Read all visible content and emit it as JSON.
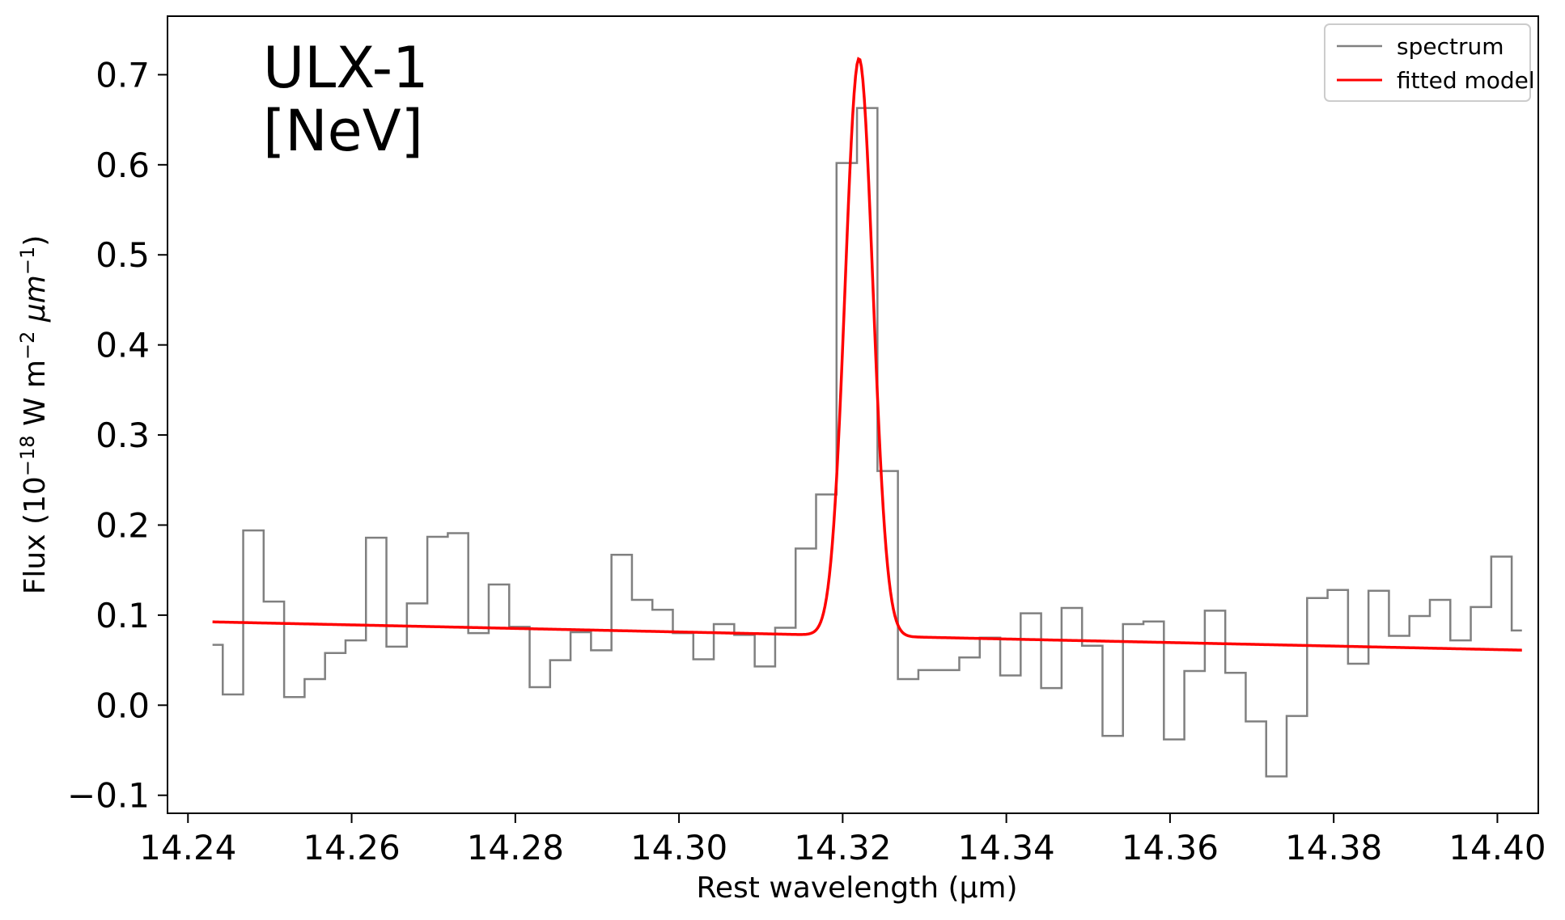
{
  "chart_data": {
    "type": "line",
    "xlabel": "Rest wavelength (μm)",
    "ylabel_parts": {
      "pre": "Flux (10",
      "sup1": "−18",
      "mid": " W m",
      "sup2": "−2",
      "mid2": " μm",
      "sup3": "−1",
      "post": ")"
    },
    "xlim": [
      14.2375,
      14.405
    ],
    "ylim": [
      -0.12,
      0.765
    ],
    "x_ticks": [
      14.24,
      14.26,
      14.28,
      14.3,
      14.32,
      14.34,
      14.36,
      14.38,
      14.4
    ],
    "x_tick_labels": [
      "14.24",
      "14.26",
      "14.28",
      "14.30",
      "14.32",
      "14.34",
      "14.36",
      "14.38",
      "14.40"
    ],
    "y_ticks": [
      -0.1,
      0.0,
      0.1,
      0.2,
      0.3,
      0.4,
      0.5,
      0.6,
      0.7
    ],
    "y_tick_labels": [
      "−0.1",
      "0.0",
      "0.1",
      "0.2",
      "0.3",
      "0.4",
      "0.5",
      "0.6",
      "0.7"
    ],
    "annotation": [
      "ULX-1",
      "[NeV]"
    ],
    "legend": {
      "placement": "top-right",
      "entries": [
        "spectrum",
        "fitted model"
      ]
    },
    "grid": false,
    "series": [
      {
        "name": "spectrum",
        "style": "steps-mid",
        "color": "#808080",
        "x": [
          14.243,
          14.2455,
          14.248,
          14.2505,
          14.253,
          14.2555,
          14.258,
          14.2605,
          14.263,
          14.2655,
          14.268,
          14.2705,
          14.273,
          14.2755,
          14.278,
          14.2805,
          14.283,
          14.2855,
          14.288,
          14.2905,
          14.293,
          14.2955,
          14.298,
          14.3005,
          14.303,
          14.3055,
          14.308,
          14.3105,
          14.313,
          14.3155,
          14.318,
          14.3205,
          14.323,
          14.3255,
          14.328,
          14.3305,
          14.333,
          14.3355,
          14.338,
          14.3405,
          14.343,
          14.3455,
          14.348,
          14.3505,
          14.353,
          14.3555,
          14.358,
          14.3605,
          14.363,
          14.3655,
          14.368,
          14.3705,
          14.373,
          14.3755,
          14.378,
          14.3805,
          14.383,
          14.3855,
          14.388,
          14.3905,
          14.393,
          14.3955,
          14.398,
          14.4005,
          14.403
        ],
        "y": [
          0.067,
          0.012,
          0.194,
          0.115,
          0.009,
          0.029,
          0.058,
          0.072,
          0.186,
          0.065,
          0.113,
          0.187,
          0.191,
          0.08,
          0.134,
          0.087,
          0.02,
          0.05,
          0.081,
          0.061,
          0.167,
          0.117,
          0.106,
          0.08,
          0.051,
          0.09,
          0.078,
          0.043,
          0.086,
          0.174,
          0.234,
          0.602,
          0.663,
          0.26,
          0.029,
          0.039,
          0.039,
          0.053,
          0.075,
          0.033,
          0.102,
          0.019,
          0.108,
          0.066,
          -0.034,
          0.09,
          0.093,
          -0.038,
          0.038,
          0.105,
          0.036,
          -0.018,
          -0.079,
          -0.012,
          0.119,
          0.128,
          0.046,
          0.127,
          0.077,
          0.099,
          0.117,
          0.072,
          0.109,
          0.165,
          0.083
        ]
      },
      {
        "name": "fitted model",
        "style": "line",
        "color": "#ff0000",
        "model": {
          "x_start": 14.243,
          "x_end": 14.403,
          "continuum_at_start": 0.0925,
          "continuum_slope_per_um": -196.0,
          "peak_center": 14.322,
          "peak_amplitude": 0.641,
          "peak_sigma": 0.0017
        }
      }
    ]
  }
}
